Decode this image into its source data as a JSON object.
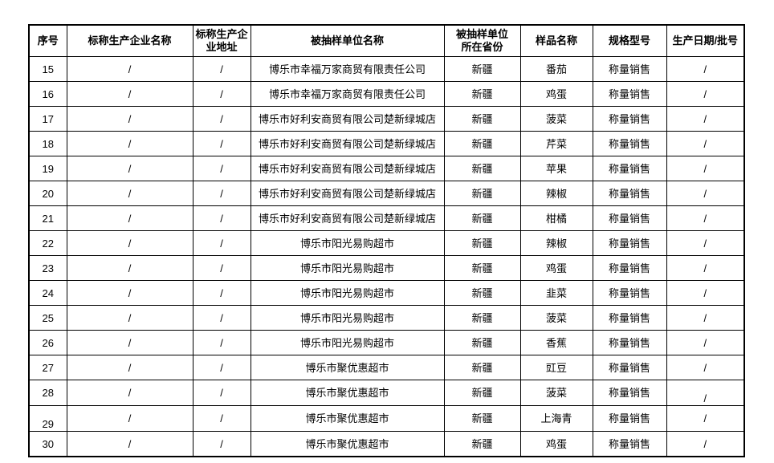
{
  "page": {
    "background": "#ffffff",
    "text_color": "#000000",
    "border_color": "#000000"
  },
  "table": {
    "headers": [
      "序号",
      "标称生产企业名称",
      "标称生产企\n业地址",
      "被抽样单位名称",
      "被抽样单位\n所在省份",
      "样品名称",
      "规格型号",
      "生产日期/批号"
    ],
    "rows": [
      [
        "15",
        "/",
        "/",
        "博乐市幸福万家商贸有限责任公司",
        "新疆",
        "番茄",
        "称量销售",
        "/"
      ],
      [
        "16",
        "/",
        "/",
        "博乐市幸福万家商贸有限责任公司",
        "新疆",
        "鸡蛋",
        "称量销售",
        "/"
      ],
      [
        "17",
        "/",
        "/",
        "博乐市好利安商贸有限公司楚新绿城店",
        "新疆",
        "菠菜",
        "称量销售",
        "/"
      ],
      [
        "18",
        "/",
        "/",
        "博乐市好利安商贸有限公司楚新绿城店",
        "新疆",
        "芹菜",
        "称量销售",
        "/"
      ],
      [
        "19",
        "/",
        "/",
        "博乐市好利安商贸有限公司楚新绿城店",
        "新疆",
        "苹果",
        "称量销售",
        "/"
      ],
      [
        "20",
        "/",
        "/",
        "博乐市好利安商贸有限公司楚新绿城店",
        "新疆",
        "辣椒",
        "称量销售",
        "/"
      ],
      [
        "21",
        "/",
        "/",
        "博乐市好利安商贸有限公司楚新绿城店",
        "新疆",
        "柑橘",
        "称量销售",
        "/"
      ],
      [
        "22",
        "/",
        "/",
        "博乐市阳光易购超市",
        "新疆",
        "辣椒",
        "称量销售",
        "/"
      ],
      [
        "23",
        "/",
        "/",
        "博乐市阳光易购超市",
        "新疆",
        "鸡蛋",
        "称量销售",
        "/"
      ],
      [
        "24",
        "/",
        "/",
        "博乐市阳光易购超市",
        "新疆",
        "韭菜",
        "称量销售",
        "/"
      ],
      [
        "25",
        "/",
        "/",
        "博乐市阳光易购超市",
        "新疆",
        "菠菜",
        "称量销售",
        "/"
      ],
      [
        "26",
        "/",
        "/",
        "博乐市阳光易购超市",
        "新疆",
        "香蕉",
        "称量销售",
        "/"
      ],
      [
        "27",
        "/",
        "/",
        "博乐市聚优惠超市",
        "新疆",
        "豇豆",
        "称量销售",
        "/"
      ],
      [
        "28",
        "/",
        "/",
        "博乐市聚优惠超市",
        "新疆",
        "菠菜",
        "称量销售",
        "/"
      ],
      [
        "29",
        "/",
        "/",
        "博乐市聚优惠超市",
        "新疆",
        "上海青",
        "称量销售",
        "/"
      ],
      [
        "30",
        "/",
        "/",
        "博乐市聚优惠超市",
        "新疆",
        "鸡蛋",
        "称量销售",
        "/"
      ]
    ]
  }
}
